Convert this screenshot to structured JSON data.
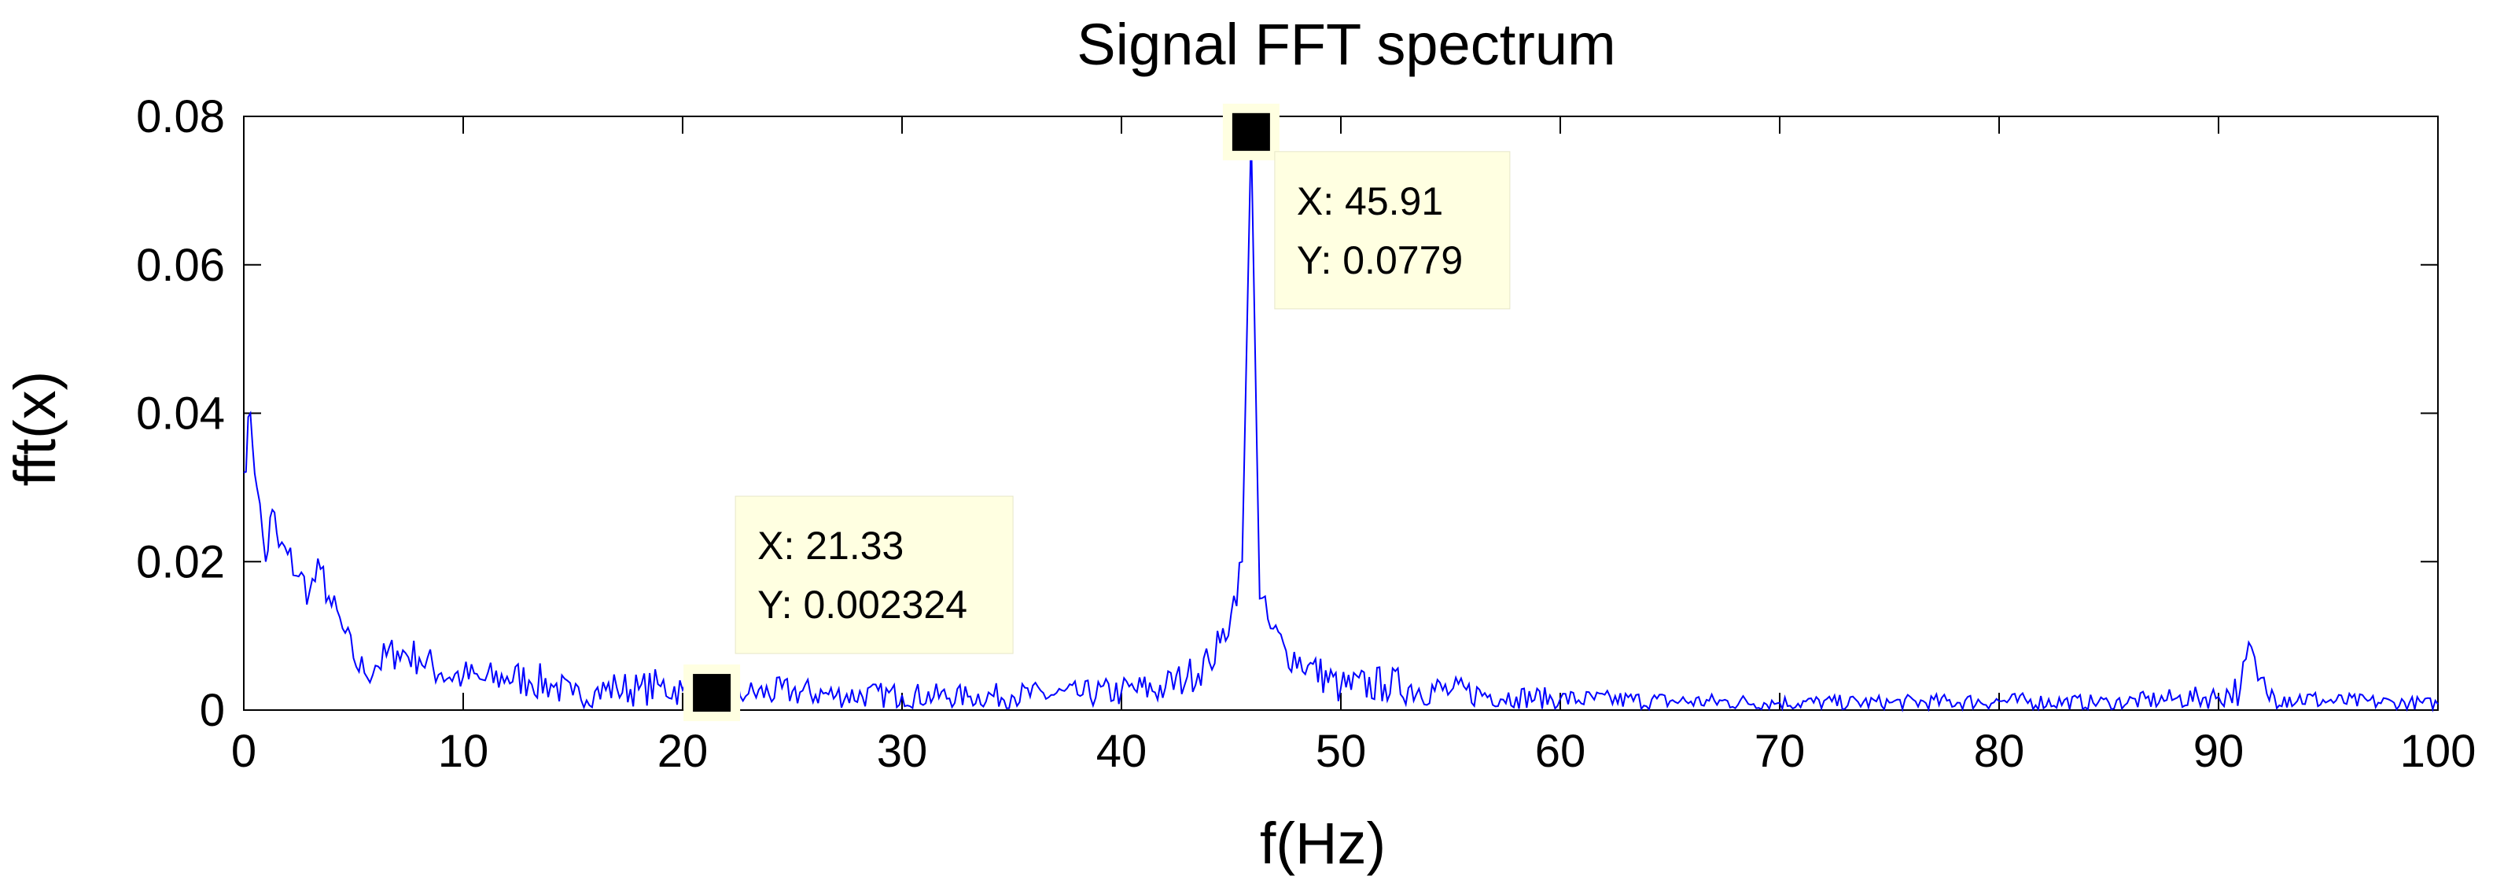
{
  "chart_data": {
    "type": "line",
    "title": "Signal FFT spectrum",
    "xlabel": "f(Hz)",
    "ylabel": "fft(x)",
    "xlim": [
      0,
      100
    ],
    "ylim": [
      0,
      0.08
    ],
    "xticks": [
      0,
      10,
      20,
      30,
      40,
      50,
      60,
      70,
      80,
      90,
      100
    ],
    "xtick_labels": [
      "0",
      "10",
      "20",
      "30",
      "40",
      "50",
      "60",
      "70",
      "80",
      "90",
      "100"
    ],
    "yticks": [
      0,
      0.02,
      0.04,
      0.06,
      0.08
    ],
    "ytick_labels": [
      "0",
      "0.02",
      "0.04",
      "0.06",
      "0.08"
    ],
    "grid": false,
    "line_color": "#0000ff",
    "tooltip_bg": "#ffffe1",
    "series": [
      {
        "x": [
          0,
          0.3,
          0.6,
          1,
          1.3,
          1.6,
          2,
          2.5,
          3,
          3.5,
          4,
          4.5,
          5,
          5.5,
          6,
          7,
          8,
          9,
          10,
          11,
          12,
          13,
          14,
          15,
          16,
          17,
          18,
          19,
          20,
          21.33,
          22,
          23,
          25,
          27,
          30,
          33,
          35,
          38,
          40,
          42,
          43,
          44,
          44.5,
          45,
          45.5,
          45.91,
          46.3,
          46.8,
          47.5,
          48.5,
          50,
          52,
          55,
          58,
          60,
          65,
          70,
          75,
          80,
          85,
          88,
          90,
          91,
          91.5,
          91.8,
          92.2,
          93,
          95,
          98,
          100
        ],
        "y": [
          0.032,
          0.04,
          0.03,
          0.02,
          0.027,
          0.022,
          0.021,
          0.018,
          0.016,
          0.019,
          0.014,
          0.011,
          0.007,
          0.005,
          0.006,
          0.008,
          0.007,
          0.005,
          0.0045,
          0.004,
          0.0045,
          0.004,
          0.0035,
          0.002,
          0.0025,
          0.003,
          0.0028,
          0.0032,
          0.0027,
          0.002324,
          0.0025,
          0.0022,
          0.0025,
          0.002,
          0.002,
          0.0018,
          0.002,
          0.0021,
          0.0025,
          0.003,
          0.0045,
          0.0065,
          0.009,
          0.013,
          0.02,
          0.0779,
          0.015,
          0.011,
          0.008,
          0.006,
          0.003,
          0.0035,
          0.0025,
          0.0018,
          0.0015,
          0.0012,
          0.001,
          0.001,
          0.0012,
          0.001,
          0.0015,
          0.0018,
          0.003,
          0.0085,
          0.004,
          0.0022,
          0.0018,
          0.0012,
          0.001,
          0.0008
        ]
      }
    ],
    "datatips": [
      {
        "x": 45.91,
        "y": 0.0779,
        "label_x": "X: 45.91",
        "label_y": "Y: 0.0779"
      },
      {
        "x": 21.33,
        "y": 0.002324,
        "label_x": "X: 21.33",
        "label_y": "Y: 0.002324"
      }
    ]
  }
}
